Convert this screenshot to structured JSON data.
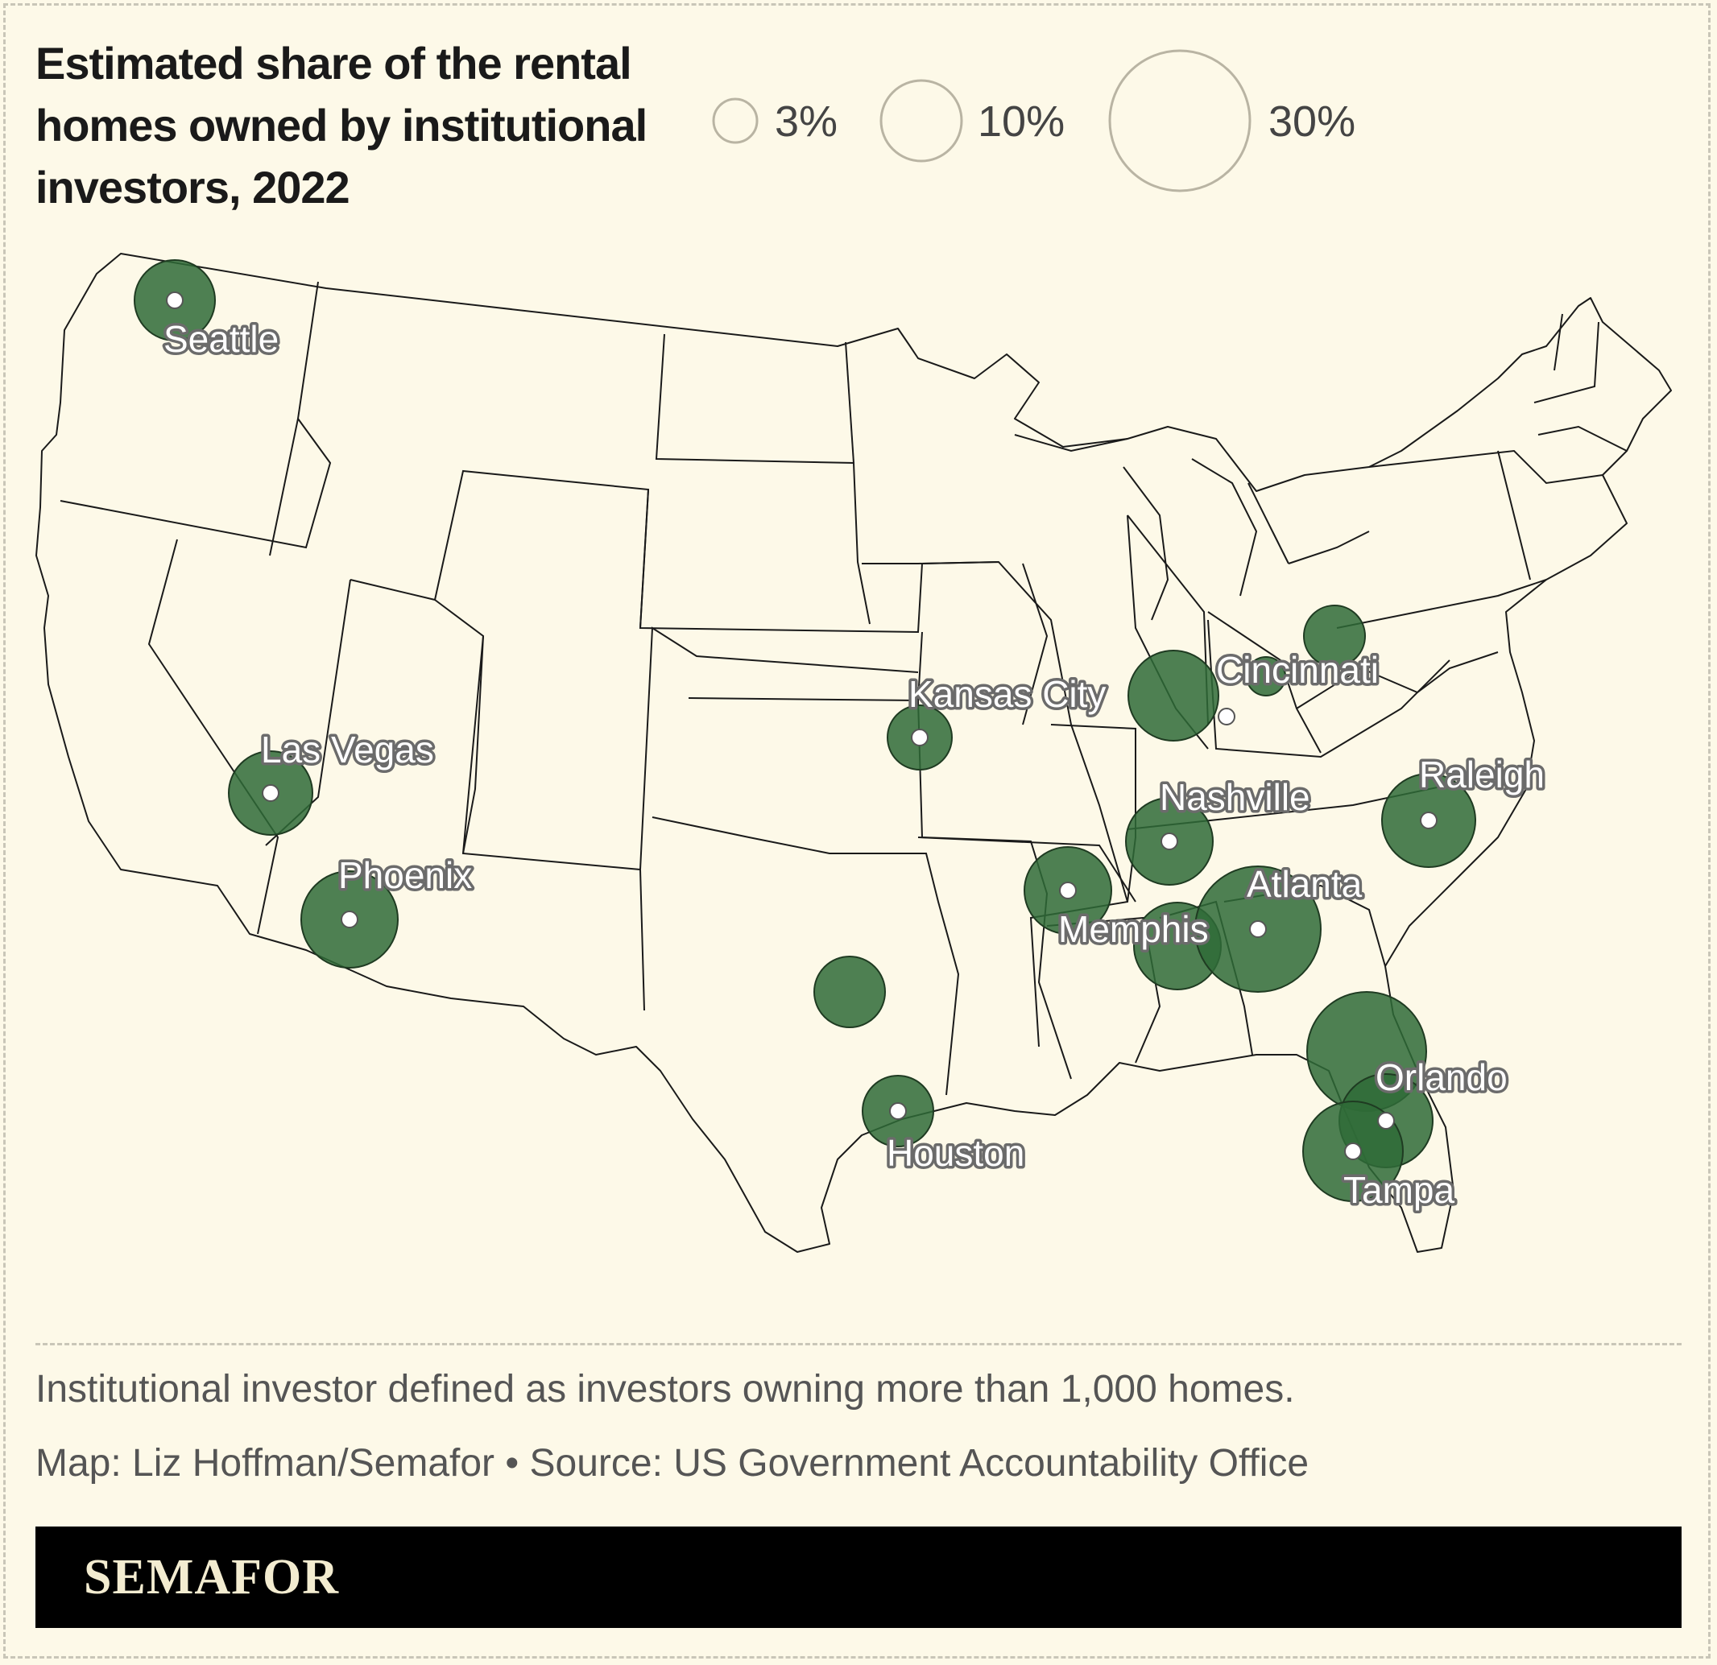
{
  "title": "Estimated share of the rental homes owned by institutional investors, 2022",
  "legend": [
    {
      "label": "3%",
      "value": 3
    },
    {
      "label": "10%",
      "value": 10
    },
    {
      "label": "30%",
      "value": 30
    }
  ],
  "colors": {
    "bubble": "#2f6b37",
    "background": "#fdf9e8"
  },
  "cities": [
    {
      "name": "Seattle"
    },
    {
      "name": "Las Vegas"
    },
    {
      "name": "Phoenix"
    },
    {
      "name": "Kansas City"
    },
    {
      "name": "Houston"
    },
    {
      "name": "Memphis"
    },
    {
      "name": "Nashville"
    },
    {
      "name": "Atlanta"
    },
    {
      "name": "Cincinnati"
    },
    {
      "name": "Raleigh"
    },
    {
      "name": "Orlando"
    },
    {
      "name": "Tampa"
    }
  ],
  "note": "Institutional investor defined as investors owning more than 1,000 homes.",
  "source": "Map: Liz Hoffman/Semafor • Source: US Government Accountability Office",
  "brand": "SEMAFOR"
}
